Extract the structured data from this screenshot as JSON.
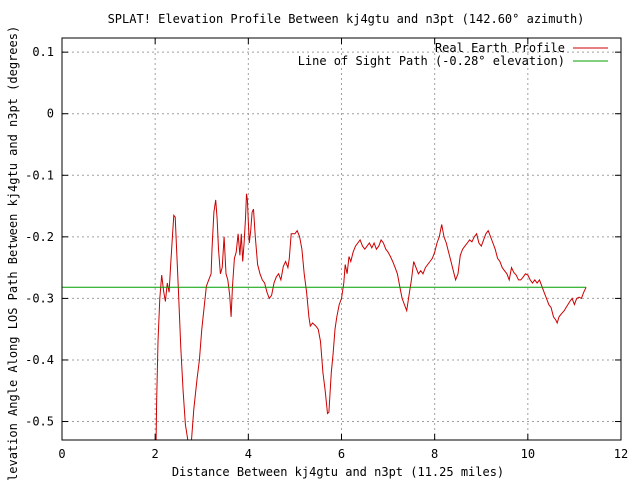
{
  "chart_data": {
    "type": "line",
    "title": "SPLAT! Elevation Profile Between kj4gtu and n3pt (142.60° azimuth)",
    "xlabel": "Distance Between kj4gtu and n3pt (11.25 miles)",
    "ylabel": "Elevation Angle Along LOS Path Between kj4gtu and n3pt (degrees)",
    "xlim": [
      0,
      12
    ],
    "ylim": [
      -0.53,
      0.123
    ],
    "x_ticks": [
      0,
      2,
      4,
      6,
      8,
      10,
      12
    ],
    "y_ticks": [
      0.1,
      0,
      -0.1,
      -0.2,
      -0.3,
      -0.4,
      -0.5
    ],
    "y_tick_labels": [
      "0.1",
      "0",
      "-0.1",
      "-0.2",
      "-0.3",
      "-0.4",
      "-0.5"
    ],
    "grid": true,
    "legend_position": "top-right",
    "series": [
      {
        "name": "Real Earth Profile",
        "color": "#cc0000",
        "points": [
          [
            2.02,
            -0.53
          ],
          [
            2.03,
            -0.47
          ],
          [
            2.06,
            -0.37
          ],
          [
            2.1,
            -0.3
          ],
          [
            2.14,
            -0.262
          ],
          [
            2.18,
            -0.288
          ],
          [
            2.22,
            -0.305
          ],
          [
            2.26,
            -0.275
          ],
          [
            2.3,
            -0.29
          ],
          [
            2.33,
            -0.25
          ],
          [
            2.37,
            -0.2
          ],
          [
            2.4,
            -0.165
          ],
          [
            2.43,
            -0.168
          ],
          [
            2.46,
            -0.22
          ],
          [
            2.5,
            -0.29
          ],
          [
            2.55,
            -0.38
          ],
          [
            2.6,
            -0.45
          ],
          [
            2.65,
            -0.505
          ],
          [
            2.7,
            -0.53
          ],
          [
            2.78,
            -0.53
          ],
          [
            2.83,
            -0.48
          ],
          [
            2.9,
            -0.43
          ],
          [
            2.95,
            -0.4
          ],
          [
            3.0,
            -0.35
          ],
          [
            3.05,
            -0.315
          ],
          [
            3.1,
            -0.28
          ],
          [
            3.15,
            -0.27
          ],
          [
            3.2,
            -0.26
          ],
          [
            3.22,
            -0.22
          ],
          [
            3.26,
            -0.16
          ],
          [
            3.3,
            -0.14
          ],
          [
            3.33,
            -0.17
          ],
          [
            3.36,
            -0.22
          ],
          [
            3.4,
            -0.26
          ],
          [
            3.44,
            -0.25
          ],
          [
            3.48,
            -0.2
          ],
          [
            3.52,
            -0.26
          ],
          [
            3.56,
            -0.27
          ],
          [
            3.6,
            -0.295
          ],
          [
            3.63,
            -0.33
          ],
          [
            3.66,
            -0.28
          ],
          [
            3.7,
            -0.235
          ],
          [
            3.74,
            -0.225
          ],
          [
            3.78,
            -0.195
          ],
          [
            3.82,
            -0.23
          ],
          [
            3.85,
            -0.195
          ],
          [
            3.88,
            -0.24
          ],
          [
            3.91,
            -0.21
          ],
          [
            3.94,
            -0.17
          ],
          [
            3.96,
            -0.13
          ],
          [
            3.98,
            -0.14
          ],
          [
            4.0,
            -0.175
          ],
          [
            4.02,
            -0.21
          ],
          [
            4.05,
            -0.19
          ],
          [
            4.08,
            -0.16
          ],
          [
            4.11,
            -0.155
          ],
          [
            4.15,
            -0.2
          ],
          [
            4.2,
            -0.245
          ],
          [
            4.25,
            -0.26
          ],
          [
            4.3,
            -0.27
          ],
          [
            4.35,
            -0.275
          ],
          [
            4.4,
            -0.29
          ],
          [
            4.45,
            -0.3
          ],
          [
            4.5,
            -0.295
          ],
          [
            4.55,
            -0.275
          ],
          [
            4.6,
            -0.265
          ],
          [
            4.65,
            -0.26
          ],
          [
            4.7,
            -0.27
          ],
          [
            4.75,
            -0.248
          ],
          [
            4.8,
            -0.24
          ],
          [
            4.85,
            -0.25
          ],
          [
            4.88,
            -0.235
          ],
          [
            4.92,
            -0.195
          ],
          [
            5.0,
            -0.195
          ],
          [
            5.05,
            -0.19
          ],
          [
            5.1,
            -0.2
          ],
          [
            5.15,
            -0.22
          ],
          [
            5.2,
            -0.26
          ],
          [
            5.25,
            -0.29
          ],
          [
            5.3,
            -0.33
          ],
          [
            5.33,
            -0.345
          ],
          [
            5.38,
            -0.34
          ],
          [
            5.45,
            -0.345
          ],
          [
            5.5,
            -0.35
          ],
          [
            5.55,
            -0.37
          ],
          [
            5.6,
            -0.42
          ],
          [
            5.65,
            -0.45
          ],
          [
            5.7,
            -0.487
          ],
          [
            5.73,
            -0.485
          ],
          [
            5.78,
            -0.42
          ],
          [
            5.82,
            -0.39
          ],
          [
            5.86,
            -0.35
          ],
          [
            5.9,
            -0.33
          ],
          [
            5.95,
            -0.31
          ],
          [
            6.0,
            -0.3
          ],
          [
            6.05,
            -0.275
          ],
          [
            6.08,
            -0.245
          ],
          [
            6.12,
            -0.26
          ],
          [
            6.16,
            -0.232
          ],
          [
            6.2,
            -0.24
          ],
          [
            6.25,
            -0.225
          ],
          [
            6.3,
            -0.215
          ],
          [
            6.35,
            -0.21
          ],
          [
            6.4,
            -0.205
          ],
          [
            6.45,
            -0.215
          ],
          [
            6.5,
            -0.22
          ],
          [
            6.55,
            -0.215
          ],
          [
            6.6,
            -0.21
          ],
          [
            6.65,
            -0.218
          ],
          [
            6.7,
            -0.21
          ],
          [
            6.75,
            -0.22
          ],
          [
            6.8,
            -0.215
          ],
          [
            6.85,
            -0.205
          ],
          [
            6.9,
            -0.21
          ],
          [
            6.95,
            -0.22
          ],
          [
            7.0,
            -0.225
          ],
          [
            7.05,
            -0.232
          ],
          [
            7.1,
            -0.24
          ],
          [
            7.15,
            -0.25
          ],
          [
            7.2,
            -0.26
          ],
          [
            7.25,
            -0.28
          ],
          [
            7.3,
            -0.3
          ],
          [
            7.35,
            -0.31
          ],
          [
            7.4,
            -0.32
          ],
          [
            7.45,
            -0.295
          ],
          [
            7.5,
            -0.27
          ],
          [
            7.55,
            -0.24
          ],
          [
            7.6,
            -0.25
          ],
          [
            7.65,
            -0.26
          ],
          [
            7.7,
            -0.255
          ],
          [
            7.75,
            -0.26
          ],
          [
            7.8,
            -0.25
          ],
          [
            7.85,
            -0.245
          ],
          [
            7.9,
            -0.24
          ],
          [
            7.95,
            -0.235
          ],
          [
            8.0,
            -0.225
          ],
          [
            8.05,
            -0.21
          ],
          [
            8.1,
            -0.2
          ],
          [
            8.15,
            -0.18
          ],
          [
            8.2,
            -0.2
          ],
          [
            8.25,
            -0.21
          ],
          [
            8.3,
            -0.225
          ],
          [
            8.35,
            -0.24
          ],
          [
            8.4,
            -0.255
          ],
          [
            8.45,
            -0.27
          ],
          [
            8.5,
            -0.26
          ],
          [
            8.55,
            -0.23
          ],
          [
            8.6,
            -0.22
          ],
          [
            8.65,
            -0.215
          ],
          [
            8.7,
            -0.21
          ],
          [
            8.75,
            -0.205
          ],
          [
            8.8,
            -0.208
          ],
          [
            8.85,
            -0.2
          ],
          [
            8.9,
            -0.195
          ],
          [
            8.95,
            -0.21
          ],
          [
            9.0,
            -0.215
          ],
          [
            9.05,
            -0.205
          ],
          [
            9.1,
            -0.195
          ],
          [
            9.15,
            -0.19
          ],
          [
            9.2,
            -0.2
          ],
          [
            9.25,
            -0.21
          ],
          [
            9.3,
            -0.22
          ],
          [
            9.35,
            -0.235
          ],
          [
            9.4,
            -0.24
          ],
          [
            9.45,
            -0.25
          ],
          [
            9.5,
            -0.255
          ],
          [
            9.55,
            -0.26
          ],
          [
            9.6,
            -0.27
          ],
          [
            9.65,
            -0.25
          ],
          [
            9.7,
            -0.258
          ],
          [
            9.75,
            -0.262
          ],
          [
            9.8,
            -0.27
          ],
          [
            9.85,
            -0.27
          ],
          [
            9.9,
            -0.265
          ],
          [
            9.95,
            -0.26
          ],
          [
            10.0,
            -0.262
          ],
          [
            10.05,
            -0.27
          ],
          [
            10.1,
            -0.275
          ],
          [
            10.15,
            -0.27
          ],
          [
            10.2,
            -0.275
          ],
          [
            10.25,
            -0.27
          ],
          [
            10.3,
            -0.28
          ],
          [
            10.35,
            -0.29
          ],
          [
            10.4,
            -0.3
          ],
          [
            10.45,
            -0.31
          ],
          [
            10.5,
            -0.315
          ],
          [
            10.55,
            -0.33
          ],
          [
            10.6,
            -0.335
          ],
          [
            10.63,
            -0.34
          ],
          [
            10.67,
            -0.33
          ],
          [
            10.72,
            -0.325
          ],
          [
            10.78,
            -0.32
          ],
          [
            10.82,
            -0.315
          ],
          [
            10.86,
            -0.31
          ],
          [
            10.9,
            -0.305
          ],
          [
            10.95,
            -0.3
          ],
          [
            11.0,
            -0.31
          ],
          [
            11.05,
            -0.3
          ],
          [
            11.1,
            -0.298
          ],
          [
            11.15,
            -0.3
          ],
          [
            11.2,
            -0.29
          ],
          [
            11.25,
            -0.282
          ]
        ]
      },
      {
        "name": "Line of Sight Path (-0.28° elevation)",
        "color": "#00a000",
        "points": [
          [
            0,
            -0.282
          ],
          [
            11.25,
            -0.282
          ]
        ]
      }
    ]
  }
}
